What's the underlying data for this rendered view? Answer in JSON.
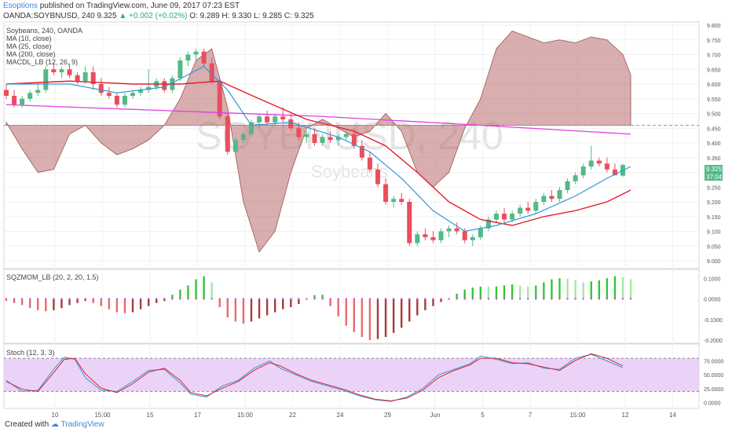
{
  "header": {
    "publisher": "Esoptions",
    "published_text": "published on TradingView.com, June 09, 2017 07:23 EST",
    "symbol": "OANDA:SOYBNUSD, 240",
    "last": "9.325",
    "change": "▲ +0.002 (+0.02%)",
    "ohlc": "O: 9.289 H: 9.330 L: 9.285 C: 9.325"
  },
  "legend": {
    "title": "Soybeans, 240, OANDA",
    "ma10": "MA (10, close)",
    "ma25": "MA (25, close)",
    "ma200": "MA (200, close)",
    "macd": "MACDL_LB (12, 26, 9)"
  },
  "watermark": {
    "big": "SOYBNUSD, 240",
    "small": "Soybeans"
  },
  "price_badge": {
    "price": "9.325",
    "countdown": "37:04"
  },
  "footer": {
    "created_with": "Created with",
    "brand": "TradingView"
  },
  "colors": {
    "candle_up": "#53b987",
    "candle_down": "#eb4d5c",
    "ma10": "#2f9bd6",
    "ma25": "#e0202b",
    "ma200": "#e040e0",
    "macd_fill": "#b86c6c",
    "mom_up_strong": "#34c634",
    "mom_up_weak": "#a4e7a4",
    "mom_down_strong": "#a33c3c",
    "mom_down_weak": "#e86b6b",
    "squeeze": "#e040e0",
    "stoch_k": "#2f9bd6",
    "stoch_d": "#e0202b",
    "stoch_band": "#e6c8f5"
  },
  "chart_data": [
    {
      "type": "candlestick",
      "title": "Soybeans, 240, OANDA",
      "ylim": [
        9.0,
        9.8
      ],
      "yticks": [
        "9.800",
        "9.750",
        "9.700",
        "9.650",
        "9.600",
        "9.550",
        "9.500",
        "9.450",
        "9.400",
        "9.350",
        "9.300",
        "9.250",
        "9.200",
        "9.150",
        "9.100",
        "9.050",
        "9.000"
      ],
      "xticks": [
        "10",
        "15:00",
        "15",
        "17",
        "15:00",
        "22",
        "24",
        "29",
        "Jun",
        "5",
        "7",
        "15:00",
        "12",
        "14"
      ],
      "candles": [
        [
          9.58,
          9.6,
          9.55,
          9.56
        ],
        [
          9.56,
          9.58,
          9.52,
          9.53
        ],
        [
          9.53,
          9.56,
          9.52,
          9.55
        ],
        [
          9.55,
          9.58,
          9.54,
          9.57
        ],
        [
          9.57,
          9.6,
          9.56,
          9.58
        ],
        [
          9.58,
          9.66,
          9.57,
          9.65
        ],
        [
          9.65,
          9.67,
          9.63,
          9.64
        ],
        [
          9.64,
          9.66,
          9.62,
          9.65
        ],
        [
          9.65,
          9.67,
          9.62,
          9.63
        ],
        [
          9.63,
          9.64,
          9.6,
          9.61
        ],
        [
          9.61,
          9.66,
          9.6,
          9.64
        ],
        [
          9.64,
          9.66,
          9.58,
          9.6
        ],
        [
          9.6,
          9.62,
          9.56,
          9.57
        ],
        [
          9.57,
          9.59,
          9.55,
          9.56
        ],
        [
          9.56,
          9.57,
          9.52,
          9.53
        ],
        [
          9.53,
          9.57,
          9.52,
          9.56
        ],
        [
          9.56,
          9.58,
          9.55,
          9.57
        ],
        [
          9.57,
          9.59,
          9.56,
          9.58
        ],
        [
          9.58,
          9.65,
          9.57,
          9.59
        ],
        [
          9.59,
          9.62,
          9.58,
          9.61
        ],
        [
          9.61,
          9.62,
          9.57,
          9.58
        ],
        [
          9.58,
          9.63,
          9.57,
          9.62
        ],
        [
          9.62,
          9.69,
          9.61,
          9.68
        ],
        [
          9.68,
          9.71,
          9.66,
          9.7
        ],
        [
          9.7,
          9.72,
          9.68,
          9.71
        ],
        [
          9.71,
          9.72,
          9.66,
          9.67
        ],
        [
          9.67,
          9.69,
          9.6,
          9.61
        ],
        [
          9.61,
          9.62,
          9.48,
          9.49
        ],
        [
          9.49,
          9.5,
          9.36,
          9.37
        ],
        [
          9.37,
          9.42,
          9.36,
          9.41
        ],
        [
          9.41,
          9.44,
          9.4,
          9.43
        ],
        [
          9.43,
          9.48,
          9.42,
          9.47
        ],
        [
          9.47,
          9.5,
          9.45,
          9.49
        ],
        [
          9.49,
          9.51,
          9.46,
          9.47
        ],
        [
          9.47,
          9.5,
          9.46,
          9.49
        ],
        [
          9.49,
          9.52,
          9.47,
          9.48
        ],
        [
          9.48,
          9.5,
          9.44,
          9.45
        ],
        [
          9.45,
          9.47,
          9.41,
          9.42
        ],
        [
          9.42,
          9.44,
          9.4,
          9.43
        ],
        [
          9.43,
          9.45,
          9.39,
          9.4
        ],
        [
          9.4,
          9.43,
          9.39,
          9.42
        ],
        [
          9.42,
          9.44,
          9.4,
          9.41
        ],
        [
          9.41,
          9.43,
          9.39,
          9.42
        ],
        [
          9.42,
          9.44,
          9.41,
          9.43
        ],
        [
          9.43,
          9.45,
          9.38,
          9.39
        ],
        [
          9.39,
          9.41,
          9.34,
          9.35
        ],
        [
          9.35,
          9.37,
          9.3,
          9.31
        ],
        [
          9.31,
          9.33,
          9.25,
          9.26
        ],
        [
          9.26,
          9.28,
          9.19,
          9.2
        ],
        [
          9.2,
          9.22,
          9.18,
          9.21
        ],
        [
          9.21,
          9.23,
          9.19,
          9.2
        ],
        [
          9.2,
          9.21,
          9.05,
          9.06
        ],
        [
          9.06,
          9.1,
          9.05,
          9.09
        ],
        [
          9.09,
          9.11,
          9.07,
          9.08
        ],
        [
          9.08,
          9.1,
          9.06,
          9.07
        ],
        [
          9.07,
          9.11,
          9.06,
          9.1
        ],
        [
          9.1,
          9.12,
          9.08,
          9.11
        ],
        [
          9.11,
          9.13,
          9.09,
          9.1
        ],
        [
          9.1,
          9.11,
          9.06,
          9.07
        ],
        [
          9.07,
          9.09,
          9.05,
          9.08
        ],
        [
          9.08,
          9.12,
          9.07,
          9.11
        ],
        [
          9.11,
          9.15,
          9.1,
          9.14
        ],
        [
          9.14,
          9.17,
          9.13,
          9.16
        ],
        [
          9.16,
          9.18,
          9.13,
          9.14
        ],
        [
          9.14,
          9.17,
          9.13,
          9.16
        ],
        [
          9.16,
          9.19,
          9.15,
          9.18
        ],
        [
          9.18,
          9.2,
          9.16,
          9.17
        ],
        [
          9.17,
          9.21,
          9.16,
          9.2
        ],
        [
          9.2,
          9.23,
          9.19,
          9.22
        ],
        [
          9.22,
          9.24,
          9.2,
          9.21
        ],
        [
          9.21,
          9.25,
          9.2,
          9.24
        ],
        [
          9.24,
          9.28,
          9.23,
          9.27
        ],
        [
          9.27,
          9.3,
          9.26,
          9.29
        ],
        [
          9.29,
          9.33,
          9.28,
          9.32
        ],
        [
          9.32,
          9.39,
          9.31,
          9.34
        ],
        [
          9.34,
          9.35,
          9.32,
          9.33
        ],
        [
          9.33,
          9.35,
          9.3,
          9.31
        ],
        [
          9.31,
          9.33,
          9.29,
          9.29
        ],
        [
          9.289,
          9.33,
          9.285,
          9.325
        ]
      ],
      "ma10": [
        [
          0,
          9.6
        ],
        [
          8,
          9.6
        ],
        [
          14,
          9.57
        ],
        [
          20,
          9.59
        ],
        [
          25,
          9.66
        ],
        [
          28,
          9.58
        ],
        [
          31,
          9.46
        ],
        [
          36,
          9.47
        ],
        [
          42,
          9.42
        ],
        [
          46,
          9.37
        ],
        [
          50,
          9.28
        ],
        [
          54,
          9.17
        ],
        [
          58,
          9.1
        ],
        [
          62,
          9.12
        ],
        [
          67,
          9.16
        ],
        [
          72,
          9.22
        ],
        [
          76,
          9.28
        ],
        [
          79,
          9.32
        ]
      ],
      "ma25": [
        [
          0,
          9.6
        ],
        [
          8,
          9.61
        ],
        [
          16,
          9.6
        ],
        [
          22,
          9.6
        ],
        [
          27,
          9.61
        ],
        [
          32,
          9.55
        ],
        [
          38,
          9.48
        ],
        [
          44,
          9.44
        ],
        [
          48,
          9.39
        ],
        [
          52,
          9.3
        ],
        [
          56,
          9.2
        ],
        [
          60,
          9.14
        ],
        [
          64,
          9.12
        ],
        [
          68,
          9.15
        ],
        [
          72,
          9.17
        ],
        [
          76,
          9.2
        ],
        [
          79,
          9.24
        ]
      ],
      "ma200": [
        [
          0,
          9.53
        ],
        [
          20,
          9.51
        ],
        [
          40,
          9.49
        ],
        [
          60,
          9.46
        ],
        [
          79,
          9.43
        ]
      ],
      "macd_overlay_level": 9.46,
      "macd_overlay": [
        [
          0,
          9.47
        ],
        [
          2,
          9.38
        ],
        [
          4,
          9.3
        ],
        [
          6,
          9.31
        ],
        [
          8,
          9.43
        ],
        [
          10,
          9.46
        ],
        [
          12,
          9.4
        ],
        [
          14,
          9.36
        ],
        [
          16,
          9.38
        ],
        [
          18,
          9.41
        ],
        [
          20,
          9.46
        ],
        [
          22,
          9.55
        ],
        [
          24,
          9.68
        ],
        [
          26,
          9.72
        ],
        [
          28,
          9.52
        ],
        [
          30,
          9.2
        ],
        [
          32,
          9.03
        ],
        [
          34,
          9.1
        ],
        [
          36,
          9.3
        ],
        [
          38,
          9.45
        ],
        [
          40,
          9.48
        ],
        [
          42,
          9.45
        ],
        [
          44,
          9.42
        ],
        [
          46,
          9.44
        ],
        [
          48,
          9.5
        ],
        [
          50,
          9.44
        ],
        [
          52,
          9.3
        ],
        [
          54,
          9.25
        ],
        [
          56,
          9.3
        ],
        [
          58,
          9.45
        ],
        [
          60,
          9.55
        ],
        [
          62,
          9.72
        ],
        [
          64,
          9.78
        ],
        [
          66,
          9.76
        ],
        [
          68,
          9.74
        ],
        [
          70,
          9.75
        ],
        [
          72,
          9.74
        ],
        [
          74,
          9.76
        ],
        [
          76,
          9.75
        ],
        [
          78,
          9.7
        ],
        [
          79,
          9.63
        ]
      ]
    },
    {
      "type": "bar",
      "title": "SQZMOM_LB (20, 2, 20, 1.5)",
      "ylim": [
        -0.2,
        0.12
      ],
      "yticks": [
        "0.1000",
        "0.0000",
        "-0.1000",
        "-0.2000"
      ],
      "values": [
        -0.01,
        -0.02,
        -0.03,
        -0.045,
        -0.055,
        -0.06,
        -0.055,
        -0.045,
        -0.03,
        -0.02,
        -0.01,
        -0.02,
        -0.035,
        -0.05,
        -0.065,
        -0.07,
        -0.065,
        -0.05,
        -0.035,
        -0.02,
        -0.01,
        0.02,
        0.045,
        0.065,
        0.095,
        0.11,
        0.08,
        -0.04,
        -0.09,
        -0.11,
        -0.12,
        -0.11,
        -0.095,
        -0.08,
        -0.065,
        -0.05,
        -0.04,
        -0.025,
        0.0,
        0.018,
        0.02,
        -0.035,
        -0.085,
        -0.13,
        -0.16,
        -0.185,
        -0.2,
        -0.195,
        -0.185,
        -0.165,
        -0.14,
        -0.11,
        -0.08,
        -0.055,
        -0.035,
        -0.015,
        0.0,
        0.025,
        0.045,
        0.055,
        0.06,
        0.058,
        0.06,
        0.065,
        0.07,
        0.065,
        0.06,
        0.065,
        0.08,
        0.095,
        0.1,
        0.098,
        0.09,
        0.08,
        0.085,
        0.09,
        0.1,
        0.11,
        0.105,
        0.095
      ]
    },
    {
      "type": "line",
      "title": "Stoch (12, 3, 3)",
      "ylim": [
        -5,
        100
      ],
      "yticks": [
        "75.0000",
        "50.0000",
        "25.0000",
        "0.0000"
      ],
      "band": [
        20,
        80
      ],
      "series": [
        {
          "values": [
            [
              0,
              40
            ],
            [
              3,
              20
            ],
            [
              6,
              22
            ],
            [
              9,
              60
            ],
            [
              11,
              82
            ],
            [
              13,
              78
            ],
            [
              15,
              45
            ],
            [
              18,
              22
            ],
            [
              21,
              20
            ],
            [
              24,
              38
            ],
            [
              27,
              58
            ],
            [
              30,
              60
            ],
            [
              33,
              35
            ],
            [
              35,
              15
            ],
            [
              38,
              10
            ],
            [
              41,
              30
            ],
            [
              44,
              40
            ],
            [
              47,
              62
            ],
            [
              50,
              75
            ],
            [
              52,
              62
            ],
            [
              55,
              50
            ],
            [
              58,
              38
            ],
            [
              61,
              30
            ],
            [
              64,
              22
            ],
            [
              67,
              12
            ],
            [
              70,
              5
            ],
            [
              73,
              2
            ],
            [
              76,
              10
            ],
            [
              79,
              25
            ],
            [
              82,
              50
            ],
            [
              85,
              60
            ],
            [
              88,
              70
            ],
            [
              90,
              84
            ],
            [
              93,
              78
            ],
            [
              96,
              70
            ],
            [
              99,
              72
            ],
            [
              102,
              62
            ],
            [
              105,
              60
            ],
            [
              108,
              80
            ],
            [
              111,
              87
            ],
            [
              114,
              75
            ],
            [
              117,
              63
            ]
          ]
        },
        {
          "values": [
            [
              0,
              38
            ],
            [
              3,
              24
            ],
            [
              6,
              20
            ],
            [
              9,
              54
            ],
            [
              11,
              78
            ],
            [
              13,
              80
            ],
            [
              15,
              52
            ],
            [
              18,
              26
            ],
            [
              21,
              18
            ],
            [
              24,
              34
            ],
            [
              27,
              55
            ],
            [
              30,
              62
            ],
            [
              33,
              40
            ],
            [
              35,
              18
            ],
            [
              38,
              12
            ],
            [
              41,
              26
            ],
            [
              44,
              38
            ],
            [
              47,
              58
            ],
            [
              50,
              72
            ],
            [
              52,
              66
            ],
            [
              55,
              52
            ],
            [
              58,
              40
            ],
            [
              61,
              32
            ],
            [
              64,
              24
            ],
            [
              67,
              14
            ],
            [
              70,
              6
            ],
            [
              73,
              3
            ],
            [
              76,
              8
            ],
            [
              79,
              22
            ],
            [
              82,
              45
            ],
            [
              85,
              58
            ],
            [
              88,
              68
            ],
            [
              90,
              80
            ],
            [
              93,
              80
            ],
            [
              96,
              72
            ],
            [
              99,
              70
            ],
            [
              102,
              64
            ],
            [
              105,
              58
            ],
            [
              108,
              76
            ],
            [
              111,
              88
            ],
            [
              114,
              80
            ],
            [
              117,
              66
            ]
          ]
        }
      ]
    }
  ]
}
